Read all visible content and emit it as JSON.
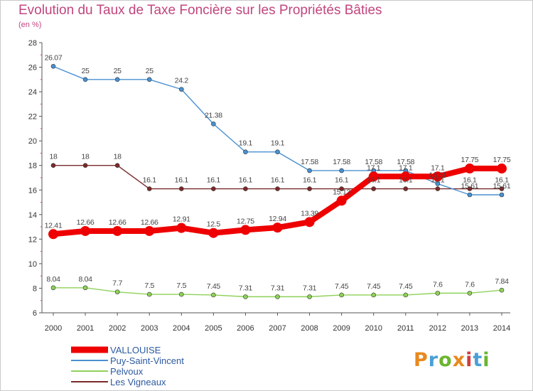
{
  "title": "Evolution du Taux de Taxe Foncière sur les Propriétés Bâties",
  "unit_label": "(en %)",
  "logo": {
    "text": "Proxiti",
    "colors": [
      "#e8891e",
      "#4a9fd6",
      "#6bb52f",
      "#e8891e",
      "#d23c3c",
      "#4a9fd6",
      "#6bb52f"
    ]
  },
  "chart_data": {
    "type": "line",
    "title": "Evolution du Taux de Taxe Foncière sur les Propriétés Bâties",
    "ylabel": "(en %)",
    "xlabel": "",
    "ylim": [
      6,
      28
    ],
    "yticks": [
      6,
      8,
      10,
      12,
      14,
      16,
      18,
      20,
      22,
      24,
      26,
      28
    ],
    "grid": false,
    "legend": "bottom-left",
    "categories": [
      "2000",
      "2001",
      "2002",
      "2003",
      "2004",
      "2005",
      "2006",
      "2007",
      "2008",
      "2009",
      "2010",
      "2011",
      "2012",
      "2013",
      "2014"
    ],
    "series": [
      {
        "name": "Les Vigneaux",
        "color": "#7a2a2a",
        "width": "thin",
        "values": [
          18,
          18,
          18,
          16.1,
          16.1,
          16.1,
          16.1,
          16.1,
          16.1,
          16.1,
          16.1,
          16.1,
          16.1,
          16.1,
          16.1
        ],
        "labels": [
          "18",
          "18",
          "18",
          "16.1",
          "16.1",
          "16.1",
          "16.1",
          "16.1",
          "16.1",
          "16.1",
          "16.1",
          "16.1",
          "16.1",
          "16.1",
          "16.1"
        ]
      },
      {
        "name": "Pelvoux",
        "color": "#8fd15a",
        "width": "thin",
        "values": [
          8.04,
          8.04,
          7.7,
          7.5,
          7.5,
          7.45,
          7.31,
          7.31,
          7.31,
          7.45,
          7.45,
          7.45,
          7.6,
          7.6,
          7.84
        ],
        "labels": [
          "8.04",
          "8.04",
          "7.7",
          "7.5",
          "7.5",
          "7.45",
          "7.31",
          "7.31",
          "7.31",
          "7.45",
          "7.45",
          "7.45",
          "7.6",
          "7.6",
          "7.84"
        ]
      },
      {
        "name": "Puy-Saint-Vincent",
        "color": "#4a90d0",
        "width": "thin",
        "values": [
          26.07,
          25,
          25,
          25,
          24.2,
          21.38,
          19.1,
          19.1,
          17.58,
          17.58,
          17.58,
          17.58,
          16.51,
          15.61,
          15.61
        ],
        "labels": [
          "26.07",
          "25",
          "25",
          "25",
          "24.2",
          "21.38",
          "19.1",
          "19.1",
          "17.58",
          "17.58",
          "17.58",
          "17.58",
          "16.51",
          "15.61",
          "15.61"
        ]
      },
      {
        "name": "VALLOUISE",
        "color": "#ee0000",
        "width": "thick",
        "values": [
          12.41,
          12.66,
          12.66,
          12.66,
          12.91,
          12.5,
          12.75,
          12.94,
          13.39,
          15.13,
          17.1,
          17.1,
          17.1,
          17.75,
          17.75
        ],
        "labels": [
          "12.41",
          "12.66",
          "12.66",
          "12.66",
          "12.91",
          "12.5",
          "12.75",
          "12.94",
          "13.39",
          "15.13",
          "17.1",
          "17.1",
          "17.1",
          "17.75",
          "17.75"
        ]
      }
    ]
  }
}
